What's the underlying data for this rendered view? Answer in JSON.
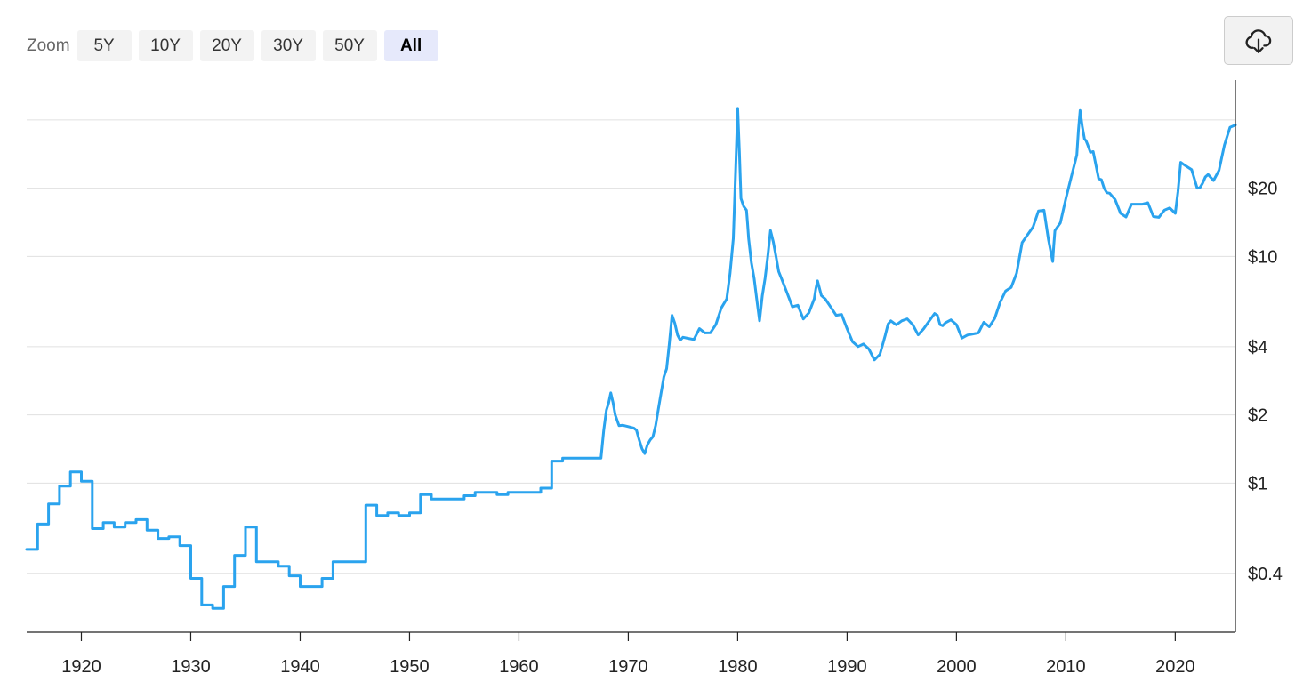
{
  "toolbar": {
    "zoom_label": "Zoom",
    "buttons": [
      "5Y",
      "10Y",
      "20Y",
      "30Y",
      "50Y",
      "All"
    ],
    "active": "All",
    "download_icon": "cloud-download-icon"
  },
  "colors": {
    "series": "#2aa3ee",
    "grid": "#e0e0e0",
    "axis": "#222222"
  },
  "chart_data": {
    "type": "line",
    "title": "",
    "xlabel": "",
    "ylabel": "",
    "yscale": "log",
    "grid": true,
    "xlim": [
      1915,
      2025.5
    ],
    "ylim": [
      0.22,
      60
    ],
    "x_ticks": [
      1920,
      1930,
      1940,
      1950,
      1960,
      1970,
      1980,
      1990,
      2000,
      2010,
      2020
    ],
    "y_ticks": [
      {
        "value": 0.4,
        "label": "$0.4"
      },
      {
        "value": 1,
        "label": "$1"
      },
      {
        "value": 2,
        "label": "$2"
      },
      {
        "value": 4,
        "label": "$4"
      },
      {
        "value": 10,
        "label": "$10"
      },
      {
        "value": 20,
        "label": "$20"
      },
      {
        "value": 40,
        "label": ""
      }
    ],
    "series": [
      {
        "name": "",
        "step_until": 1967.5,
        "points": [
          [
            1915,
            0.51
          ],
          [
            1916,
            0.66
          ],
          [
            1917,
            0.81
          ],
          [
            1918,
            0.97
          ],
          [
            1919,
            1.12
          ],
          [
            1920,
            1.02
          ],
          [
            1921,
            0.63
          ],
          [
            1922,
            0.67
          ],
          [
            1923,
            0.64
          ],
          [
            1924,
            0.67
          ],
          [
            1925,
            0.69
          ],
          [
            1926,
            0.62
          ],
          [
            1927,
            0.57
          ],
          [
            1928,
            0.58
          ],
          [
            1929,
            0.53
          ],
          [
            1930,
            0.38
          ],
          [
            1931,
            0.29
          ],
          [
            1932,
            0.28
          ],
          [
            1933,
            0.35
          ],
          [
            1934,
            0.48
          ],
          [
            1935,
            0.64
          ],
          [
            1936,
            0.45
          ],
          [
            1938,
            0.43
          ],
          [
            1939,
            0.39
          ],
          [
            1940,
            0.35
          ],
          [
            1942,
            0.38
          ],
          [
            1943,
            0.45
          ],
          [
            1946,
            0.8
          ],
          [
            1947,
            0.72
          ],
          [
            1948,
            0.74
          ],
          [
            1949,
            0.72
          ],
          [
            1950,
            0.74
          ],
          [
            1951,
            0.89
          ],
          [
            1952,
            0.85
          ],
          [
            1955,
            0.88
          ],
          [
            1956,
            0.91
          ],
          [
            1958,
            0.89
          ],
          [
            1959,
            0.91
          ],
          [
            1962,
            0.95
          ],
          [
            1963,
            1.25
          ],
          [
            1964,
            1.29
          ],
          [
            1967.5,
            1.29
          ],
          [
            1968,
            2.1
          ],
          [
            1968.4,
            2.5
          ],
          [
            1968.8,
            2.0
          ],
          [
            1969.5,
            1.8
          ],
          [
            1970.5,
            1.75
          ],
          [
            1971,
            1.55
          ],
          [
            1971.5,
            1.35
          ],
          [
            1972,
            1.55
          ],
          [
            1972.5,
            1.8
          ],
          [
            1973,
            2.5
          ],
          [
            1973.5,
            3.2
          ],
          [
            1974,
            5.5
          ],
          [
            1974.5,
            4.5
          ],
          [
            1975,
            4.4
          ],
          [
            1976,
            4.3
          ],
          [
            1977,
            4.6
          ],
          [
            1978,
            5.0
          ],
          [
            1979,
            6.5
          ],
          [
            1979.6,
            12
          ],
          [
            1980,
            45
          ],
          [
            1980.3,
            18
          ],
          [
            1980.8,
            16
          ],
          [
            1981,
            12
          ],
          [
            1981.5,
            8
          ],
          [
            1982,
            5.2
          ],
          [
            1982.5,
            8
          ],
          [
            1983,
            13
          ],
          [
            1983.5,
            10
          ],
          [
            1984,
            8
          ],
          [
            1985,
            6
          ],
          [
            1986,
            5.3
          ],
          [
            1987,
            6.5
          ],
          [
            1987.3,
            7.8
          ],
          [
            1988,
            6.5
          ],
          [
            1989,
            5.5
          ],
          [
            1990,
            4.8
          ],
          [
            1991,
            4.0
          ],
          [
            1992,
            3.9
          ],
          [
            1993,
            3.7
          ],
          [
            1993.5,
            4.5
          ],
          [
            1994,
            5.2
          ],
          [
            1995,
            5.2
          ],
          [
            1996,
            5.0
          ],
          [
            1997,
            4.8
          ],
          [
            1998,
            5.6
          ],
          [
            1998.5,
            5.0
          ],
          [
            1999,
            5.1
          ],
          [
            2000,
            5.0
          ],
          [
            2001,
            4.5
          ],
          [
            2002,
            4.6
          ],
          [
            2003,
            4.9
          ],
          [
            2004,
            6.3
          ],
          [
            2005,
            7.3
          ],
          [
            2006,
            11.5
          ],
          [
            2007,
            13.5
          ],
          [
            2008,
            16
          ],
          [
            2008.8,
            9.5
          ],
          [
            2009,
            13
          ],
          [
            2010,
            18
          ],
          [
            2011,
            28
          ],
          [
            2011.3,
            44
          ],
          [
            2011.7,
            33
          ],
          [
            2012,
            31
          ],
          [
            2012.5,
            29
          ],
          [
            2013,
            22
          ],
          [
            2013.5,
            20
          ],
          [
            2014,
            19
          ],
          [
            2015,
            15.5
          ],
          [
            2016,
            17
          ],
          [
            2017,
            17
          ],
          [
            2018,
            15
          ],
          [
            2019,
            16
          ],
          [
            2020,
            15.5
          ],
          [
            2020.5,
            26
          ],
          [
            2021,
            25
          ],
          [
            2022,
            20
          ],
          [
            2022.5,
            21
          ],
          [
            2023,
            23
          ],
          [
            2024,
            24
          ],
          [
            2024.5,
            31
          ],
          [
            2025.5,
            38
          ]
        ]
      }
    ]
  }
}
